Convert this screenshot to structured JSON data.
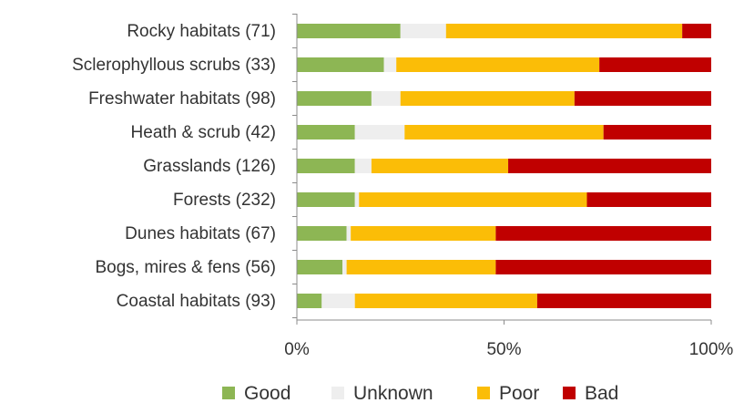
{
  "chart_data": {
    "type": "bar",
    "orientation": "horizontal",
    "stacked": "percent",
    "categories": [
      "Rocky habitats (71)",
      "Sclerophyllous scrubs (33)",
      "Freshwater habitats (98)",
      "Heath & scrub (42)",
      "Grasslands (126)",
      "Forests (232)",
      "Dunes habitats (67)",
      "Bogs, mires & fens (56)",
      "Coastal habitats (93)"
    ],
    "series": [
      {
        "name": "Good",
        "color": "#8db654",
        "values": [
          25,
          21,
          18,
          14,
          14,
          14,
          12,
          11,
          6
        ]
      },
      {
        "name": "Unknown",
        "color": "#eeeeee",
        "values": [
          11,
          3,
          7,
          12,
          4,
          1,
          1,
          1,
          8
        ]
      },
      {
        "name": "Poor",
        "color": "#fbbd07",
        "values": [
          57,
          49,
          42,
          48,
          33,
          55,
          35,
          36,
          44
        ]
      },
      {
        "name": "Bad",
        "color": "#c00000",
        "values": [
          7,
          27,
          33,
          26,
          49,
          30,
          52,
          52,
          42
        ]
      }
    ],
    "xlim": [
      0,
      100
    ],
    "xticks": [
      "0%",
      "50%",
      "100%"
    ],
    "grid": false,
    "legend_position": "bottom",
    "title": "",
    "xlabel": "",
    "ylabel": ""
  }
}
